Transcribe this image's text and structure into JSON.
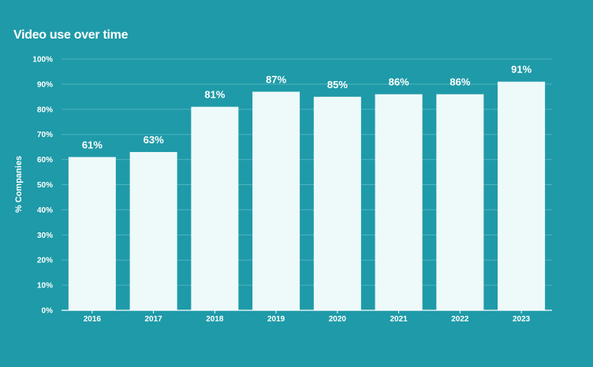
{
  "chart_data": {
    "type": "bar",
    "title": "Video use over time",
    "xlabel": "",
    "ylabel": "% Companies",
    "categories": [
      "2016",
      "2017",
      "2018",
      "2019",
      "2020",
      "2021",
      "2022",
      "2023"
    ],
    "values": [
      61,
      63,
      81,
      87,
      85,
      86,
      86,
      91
    ],
    "data_labels": [
      "61%",
      "63%",
      "81%",
      "87%",
      "85%",
      "86%",
      "86%",
      "91%"
    ],
    "ylim": [
      0,
      100
    ],
    "yticks": [
      0,
      10,
      20,
      30,
      40,
      50,
      60,
      70,
      80,
      90,
      100
    ],
    "ytick_labels": [
      "0%",
      "10%",
      "20%",
      "30%",
      "40%",
      "50%",
      "60%",
      "70%",
      "80%",
      "90%",
      "100%"
    ],
    "grid": true,
    "legend": "none"
  },
  "colors": {
    "background": "#1f9aa8",
    "bar": "#eef9fa",
    "gridline": "#4fb3bf",
    "text": "#ffffff"
  }
}
